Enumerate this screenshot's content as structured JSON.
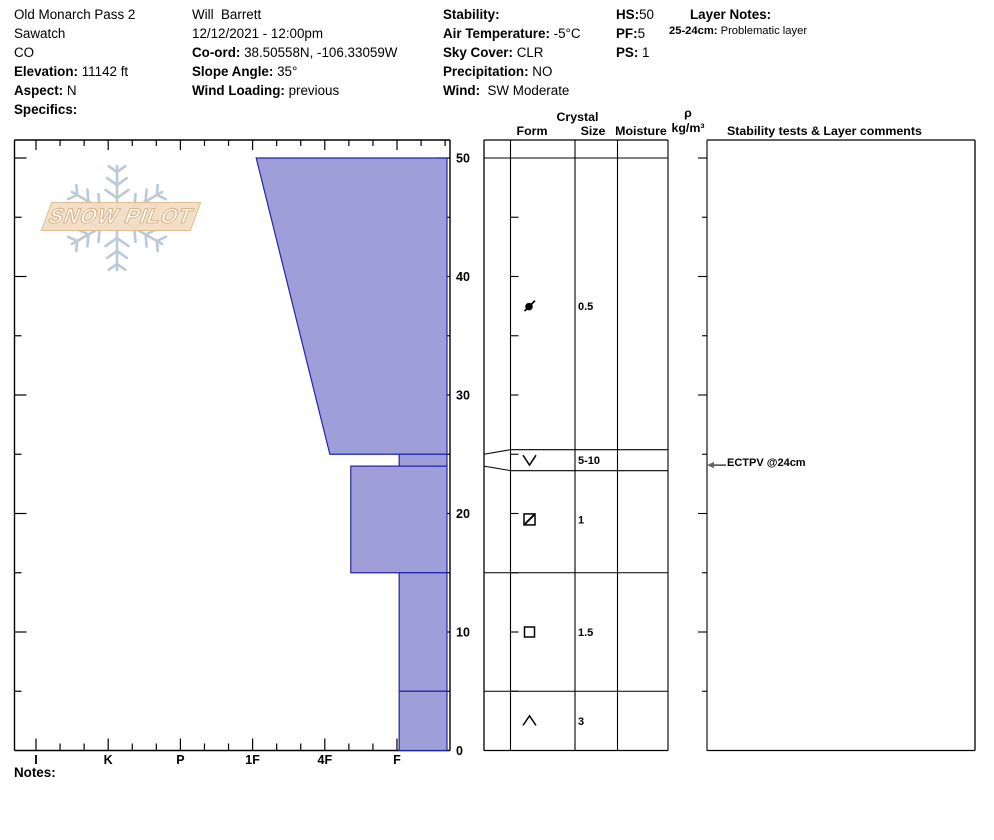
{
  "header": {
    "site": {
      "name": "Old Monarch Pass 2",
      "region": "Sawatch",
      "state": "CO",
      "elevation_label": "Elevation:",
      "elevation": " 11142 ft",
      "aspect_label": "Aspect:",
      "aspect": " N",
      "specifics_label": "Specifics:",
      "specifics": ""
    },
    "observer": {
      "name": "Will  Barrett",
      "datetime": "12/12/2021 - 12:00pm",
      "coord_label": "Co-ord:",
      "coord": " 38.50558N, -106.33059W",
      "slope_label": "Slope Angle:",
      "slope": " 35°",
      "wind_loading_label": "Wind Loading:",
      "wind_loading": " previous"
    },
    "conditions": {
      "stability_label": "Stability:",
      "stability": "",
      "air_temp_label": "Air Temperature:",
      "air_temp": " -5°C",
      "sky_label": "Sky Cover:",
      "sky": " CLR",
      "precip_label": "Precipitation:",
      "precip": " NO",
      "wind_label": "Wind:",
      "wind": "  SW Moderate"
    },
    "pit": {
      "hs_label": "HS:",
      "hs": "50",
      "pf_label": "PF:",
      "pf": "5",
      "ps_label": "PS:",
      "ps": " 1"
    },
    "layer_notes": {
      "title": "Layer Notes:",
      "note_range": "25-24cm:",
      "note_text": " Problematic layer"
    }
  },
  "table_header": {
    "crystal": "Crystal",
    "form": "Form",
    "size": "Size",
    "moisture": "Moisture",
    "rho": "ρ",
    "rho_units": "kg/m³",
    "comments": "Stability tests & Layer comments"
  },
  "chart_data": {
    "type": "snow-profile",
    "title": "Snow pit hardness profile",
    "hs_total_cm": 50,
    "depth_axis": {
      "units": "cm",
      "range": [
        0,
        50
      ],
      "major_ticks": [
        50,
        40,
        30,
        20,
        10,
        0
      ],
      "minor_step_cm": 5,
      "labels_side": "right"
    },
    "hardness_axis": {
      "categories": [
        "I",
        "K",
        "P",
        "1F",
        "4F",
        "F"
      ],
      "order": "hard-left-to-soft-right",
      "minor_divisions_per_unit": 3
    },
    "layers": [
      {
        "top_cm": 50,
        "bottom_cm": 25,
        "hardness": "1F→4F",
        "hardness_code_top": 4.05,
        "hardness_code_bottom": 5.07,
        "grain_form": "RG/DF",
        "grain_icon": "rounded-grain-slash",
        "size_mm": "0.5",
        "moisture": "",
        "density": "",
        "annotation": ""
      },
      {
        "top_cm": 25,
        "bottom_cm": 24,
        "hardness": "F",
        "hardness_code_top": 6.03,
        "hardness_code_bottom": 6.03,
        "grain_form": "SH",
        "grain_icon": "surface-hoar-v",
        "size_mm": "5-10",
        "moisture": "",
        "density": "",
        "expanded_row": true,
        "annotation": "ECTPV @24cm"
      },
      {
        "top_cm": 24,
        "bottom_cm": 15,
        "hardness": "4F-",
        "hardness_code_top": 5.36,
        "hardness_code_bottom": 5.36,
        "grain_form": "FCxr",
        "grain_icon": "square-diagonal",
        "size_mm": "1",
        "moisture": "",
        "density": "",
        "annotation": ""
      },
      {
        "top_cm": 15,
        "bottom_cm": 5,
        "hardness": "F",
        "hardness_code_top": 6.03,
        "hardness_code_bottom": 6.03,
        "grain_form": "FC",
        "grain_icon": "square-open",
        "size_mm": "1.5",
        "moisture": "",
        "density": "",
        "annotation": ""
      },
      {
        "top_cm": 5,
        "bottom_cm": 0,
        "hardness": "F",
        "hardness_code_top": 6.03,
        "hardness_code_bottom": 6.03,
        "grain_form": "DH",
        "grain_icon": "chevron-up",
        "size_mm": "3",
        "moisture": "",
        "density": "",
        "annotation": ""
      }
    ]
  },
  "logo": {
    "text": "SNOW PILOT"
  },
  "notes_label": "Notes:",
  "colors": {
    "layer_fill": "#9e9ed9",
    "layer_stroke": "#2424ad",
    "line": "#000000",
    "logo_snowflake": "#bcc9d6",
    "logo_banner": "#f3ddc2",
    "arrow": "#666666"
  }
}
